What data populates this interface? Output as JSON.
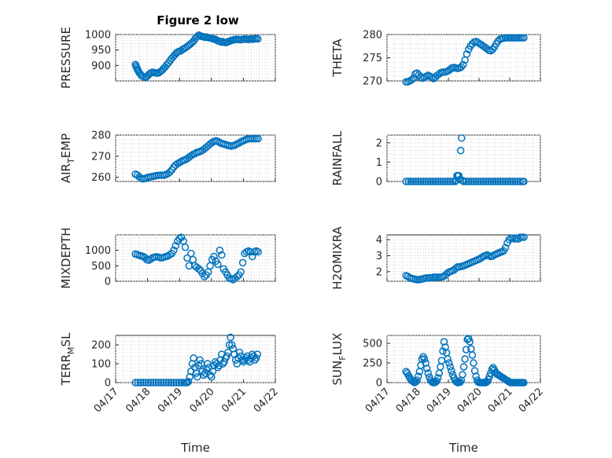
{
  "figure": {
    "title": "Figure 2 low",
    "marker_color": "#0072BD",
    "xlabel": "Time",
    "x_tick_labels": [
      "04/17",
      "04/18",
      "04/19",
      "04/20",
      "04/21",
      "04/22"
    ]
  },
  "chart_data": [
    {
      "type": "scatter",
      "ylabel": "PRESSURE",
      "ylabel_sub": "",
      "title": "Figure 2 low",
      "xlim": [
        0,
        5
      ],
      "ylim": [
        850,
        1000
      ],
      "yticks": [
        900,
        950,
        1000
      ],
      "show_x_ticklabels": false,
      "x": [
        0.62,
        0.64,
        0.66,
        0.68,
        0.7,
        0.72,
        0.75,
        0.8,
        0.85,
        0.9,
        0.95,
        1.0,
        1.05,
        1.1,
        1.15,
        1.2,
        1.25,
        1.3,
        1.35,
        1.4,
        1.45,
        1.5,
        1.55,
        1.6,
        1.65,
        1.7,
        1.75,
        1.8,
        1.85,
        1.9,
        1.95,
        2.0,
        2.05,
        2.1,
        2.15,
        2.2,
        2.25,
        2.3,
        2.35,
        2.4,
        2.45,
        2.5,
        2.55,
        2.6,
        2.65,
        2.7,
        2.75,
        2.8,
        2.85,
        2.9,
        2.95,
        3.0,
        3.05,
        3.1,
        3.15,
        3.2,
        3.25,
        3.3,
        3.35,
        3.4,
        3.45,
        3.5,
        3.55,
        3.6,
        3.65,
        3.7,
        3.75,
        3.8,
        3.85,
        3.9,
        3.95,
        4.0,
        4.05,
        4.1,
        4.15,
        4.2,
        4.25,
        4.3,
        4.35,
        4.4,
        4.45
      ],
      "y": [
        903,
        898,
        893,
        888,
        884,
        880,
        875,
        868,
        865,
        862,
        862,
        866,
        872,
        876,
        878,
        877,
        876,
        875,
        876,
        880,
        884,
        890,
        895,
        902,
        908,
        915,
        922,
        928,
        934,
        940,
        944,
        946,
        948,
        952,
        955,
        958,
        962,
        966,
        970,
        975,
        980,
        988,
        993,
        998,
        996,
        994,
        993,
        991,
        992,
        990,
        989,
        988,
        986,
        985,
        983,
        980,
        978,
        976,
        977,
        975,
        974,
        976,
        978,
        980,
        982,
        983,
        984,
        985,
        984,
        983,
        984,
        985,
        986,
        985,
        984,
        985,
        986,
        985,
        986,
        987,
        986
      ]
    },
    {
      "type": "scatter",
      "ylabel": "THETA",
      "ylabel_sub": "",
      "xlim": [
        0,
        5
      ],
      "ylim": [
        270,
        280
      ],
      "yticks": [
        270,
        275,
        280
      ],
      "show_x_ticklabels": false,
      "x": [
        0.62,
        0.68,
        0.74,
        0.8,
        0.86,
        0.92,
        0.98,
        1.04,
        1.1,
        1.16,
        1.22,
        1.28,
        1.34,
        1.4,
        1.46,
        1.52,
        1.58,
        1.64,
        1.7,
        1.76,
        1.82,
        1.88,
        1.94,
        2.0,
        2.06,
        2.12,
        2.18,
        2.24,
        2.3,
        2.36,
        2.42,
        2.48,
        2.54,
        2.6,
        2.66,
        2.72,
        2.78,
        2.84,
        2.9,
        2.96,
        3.02,
        3.08,
        3.14,
        3.2,
        3.26,
        3.32,
        3.38,
        3.44,
        3.5,
        3.56,
        3.62,
        3.68,
        3.74,
        3.8,
        3.86,
        3.92,
        3.98,
        4.04,
        4.1,
        4.16,
        4.22,
        4.28,
        4.34,
        4.4,
        4.46
      ],
      "y": [
        269.8,
        269.8,
        270.0,
        270.2,
        270.6,
        271.5,
        271.7,
        271.3,
        270.8,
        270.6,
        270.8,
        271.0,
        271.2,
        271.0,
        270.8,
        270.5,
        270.8,
        271.2,
        271.5,
        271.8,
        271.9,
        271.9,
        272.0,
        272.2,
        272.5,
        272.8,
        272.9,
        272.8,
        272.7,
        272.8,
        273.0,
        273.5,
        274.5,
        275.8,
        276.8,
        277.5,
        278.0,
        278.4,
        278.5,
        278.3,
        278.0,
        277.8,
        277.5,
        277.2,
        276.9,
        276.6,
        276.5,
        276.8,
        277.3,
        278.0,
        278.6,
        279.0,
        279.1,
        279.2,
        279.3,
        279.3,
        279.3,
        279.3,
        279.3,
        279.3,
        279.3,
        279.3,
        279.3,
        279.3,
        279.3
      ]
    },
    {
      "type": "scatter",
      "ylabel": "AIR",
      "ylabel_sub": "T",
      "ylabel_suffix": "EMP",
      "xlim": [
        0,
        5
      ],
      "ylim": [
        258,
        280
      ],
      "yticks": [
        260,
        270,
        280
      ],
      "show_x_ticklabels": false,
      "x": [
        0.62,
        0.68,
        0.74,
        0.8,
        0.86,
        0.92,
        0.98,
        1.04,
        1.1,
        1.16,
        1.22,
        1.28,
        1.34,
        1.4,
        1.46,
        1.52,
        1.58,
        1.64,
        1.7,
        1.76,
        1.82,
        1.88,
        1.94,
        2.0,
        2.06,
        2.12,
        2.18,
        2.24,
        2.3,
        2.36,
        2.42,
        2.48,
        2.54,
        2.6,
        2.66,
        2.72,
        2.78,
        2.84,
        2.9,
        2.96,
        3.02,
        3.08,
        3.14,
        3.2,
        3.26,
        3.32,
        3.38,
        3.44,
        3.5,
        3.56,
        3.62,
        3.68,
        3.74,
        3.8,
        3.86,
        3.92,
        3.98,
        4.04,
        4.1,
        4.16,
        4.22,
        4.28,
        4.34,
        4.4,
        4.46
      ],
      "y": [
        261.5,
        261.0,
        260.2,
        259.5,
        259.2,
        259.4,
        259.8,
        260.0,
        260.2,
        260.4,
        260.6,
        260.8,
        260.9,
        261.0,
        261.0,
        261.0,
        261.3,
        261.8,
        262.5,
        263.5,
        264.8,
        265.8,
        266.5,
        267.0,
        267.5,
        268.0,
        268.3,
        268.8,
        269.5,
        270.2,
        270.8,
        271.2,
        271.8,
        272.0,
        272.3,
        272.8,
        273.5,
        274.2,
        275.0,
        275.8,
        276.5,
        277.0,
        277.3,
        277.0,
        276.5,
        276.0,
        275.8,
        275.5,
        275.2,
        275.0,
        274.8,
        275.0,
        275.3,
        275.8,
        276.2,
        276.8,
        277.2,
        277.6,
        278.0,
        278.2,
        278.3,
        278.3,
        278.3,
        278.3,
        278.3
      ]
    },
    {
      "type": "scatter",
      "ylabel": "RAINFALL",
      "ylabel_sub": "",
      "xlim": [
        0,
        5
      ],
      "ylim": [
        0,
        2.4
      ],
      "yticks": [
        0,
        1,
        2
      ],
      "show_x_ticklabels": false,
      "x": [
        0.62,
        0.7,
        0.78,
        0.86,
        0.94,
        1.02,
        1.1,
        1.18,
        1.26,
        1.34,
        1.42,
        1.5,
        1.58,
        1.66,
        1.74,
        1.82,
        1.9,
        1.98,
        2.06,
        2.14,
        2.22,
        2.25,
        2.28,
        2.31,
        2.34,
        2.37,
        2.4,
        2.43,
        2.46,
        2.5,
        2.58,
        2.66,
        2.74,
        2.82,
        2.9,
        2.98,
        3.06,
        3.14,
        3.22,
        3.3,
        3.38,
        3.46,
        3.54,
        3.62,
        3.7,
        3.78,
        3.86,
        3.94,
        4.02,
        4.1,
        4.18,
        4.26,
        4.34,
        4.42,
        4.46
      ],
      "y": [
        0,
        0,
        0,
        0,
        0,
        0,
        0,
        0,
        0,
        0,
        0,
        0,
        0,
        0,
        0,
        0,
        0,
        0,
        0,
        0,
        0,
        0.05,
        0.3,
        0.3,
        0.3,
        0.1,
        1.6,
        2.25,
        0.05,
        0,
        0,
        0,
        0,
        0,
        0,
        0,
        0,
        0,
        0,
        0,
        0,
        0,
        0,
        0,
        0,
        0,
        0,
        0,
        0,
        0,
        0,
        0,
        0,
        0,
        0
      ]
    },
    {
      "type": "scatter",
      "ylabel": "MIXDEPTH",
      "ylabel_sub": "",
      "xlim": [
        0,
        5
      ],
      "ylim": [
        0,
        1500
      ],
      "yticks": [
        0,
        500,
        1000
      ],
      "show_x_ticklabels": false,
      "x": [
        0.62,
        0.68,
        0.74,
        0.8,
        0.86,
        0.92,
        0.98,
        1.04,
        1.1,
        1.16,
        1.22,
        1.28,
        1.34,
        1.4,
        1.46,
        1.52,
        1.58,
        1.64,
        1.7,
        1.76,
        1.82,
        1.88,
        1.94,
        2.0,
        2.06,
        2.12,
        2.18,
        2.24,
        2.3,
        2.36,
        2.42,
        2.48,
        2.54,
        2.6,
        2.66,
        2.72,
        2.78,
        2.84,
        2.9,
        2.96,
        3.02,
        3.08,
        3.14,
        3.2,
        3.26,
        3.32,
        3.38,
        3.44,
        3.5,
        3.56,
        3.62,
        3.68,
        3.74,
        3.8,
        3.86,
        3.92,
        3.98,
        4.04,
        4.1,
        4.16,
        4.22,
        4.28,
        4.34,
        4.4,
        4.46
      ],
      "y": [
        880,
        860,
        840,
        820,
        800,
        760,
        700,
        680,
        720,
        760,
        780,
        790,
        780,
        760,
        760,
        780,
        800,
        820,
        860,
        900,
        1000,
        1150,
        1300,
        1380,
        1420,
        1300,
        1100,
        750,
        500,
        900,
        700,
        500,
        450,
        400,
        350,
        250,
        150,
        200,
        300,
        500,
        700,
        800,
        650,
        550,
        1000,
        850,
        400,
        300,
        200,
        100,
        80,
        50,
        100,
        150,
        200,
        300,
        600,
        900,
        950,
        980,
        950,
        800,
        950,
        980,
        950
      ]
    },
    {
      "type": "scatter",
      "ylabel": "H2OMIXRA",
      "ylabel_sub": "",
      "xlim": [
        0,
        5
      ],
      "ylim": [
        1.4,
        4.3
      ],
      "yticks": [
        2,
        3,
        4
      ],
      "show_x_ticklabels": false,
      "x": [
        0.62,
        0.68,
        0.74,
        0.8,
        0.86,
        0.92,
        0.98,
        1.04,
        1.1,
        1.16,
        1.22,
        1.28,
        1.34,
        1.4,
        1.46,
        1.52,
        1.58,
        1.64,
        1.7,
        1.76,
        1.82,
        1.88,
        1.94,
        2.0,
        2.06,
        2.12,
        2.18,
        2.24,
        2.3,
        2.36,
        2.42,
        2.48,
        2.54,
        2.6,
        2.66,
        2.72,
        2.78,
        2.84,
        2.9,
        2.96,
        3.02,
        3.08,
        3.14,
        3.2,
        3.26,
        3.32,
        3.38,
        3.44,
        3.5,
        3.56,
        3.62,
        3.68,
        3.74,
        3.8,
        3.86,
        3.92,
        3.98,
        4.04,
        4.1,
        4.16,
        4.22,
        4.28,
        4.34,
        4.4,
        4.46
      ],
      "y": [
        1.75,
        1.7,
        1.62,
        1.58,
        1.55,
        1.52,
        1.5,
        1.5,
        1.52,
        1.55,
        1.58,
        1.6,
        1.6,
        1.62,
        1.62,
        1.65,
        1.65,
        1.65,
        1.65,
        1.66,
        1.68,
        1.75,
        1.85,
        1.95,
        2.0,
        2.05,
        2.1,
        2.2,
        2.3,
        2.3,
        2.32,
        2.35,
        2.4,
        2.45,
        2.5,
        2.55,
        2.6,
        2.65,
        2.7,
        2.75,
        2.8,
        2.88,
        2.95,
        3.0,
        3.05,
        3.0,
        2.95,
        2.98,
        3.05,
        3.1,
        3.15,
        3.2,
        3.25,
        3.3,
        3.5,
        3.8,
        4.0,
        4.1,
        4.1,
        4.05,
        4.1,
        4.05,
        4.15,
        4.15,
        4.15
      ]
    },
    {
      "type": "scatter",
      "ylabel": "TERR",
      "ylabel_sub": "M",
      "ylabel_suffix": "SL",
      "xlim": [
        0,
        5
      ],
      "ylim": [
        0,
        250
      ],
      "yticks": [
        0,
        100,
        200
      ],
      "show_x_ticklabels": true,
      "x": [
        0.62,
        0.7,
        0.78,
        0.86,
        0.94,
        1.02,
        1.1,
        1.18,
        1.26,
        1.34,
        1.42,
        1.5,
        1.58,
        1.66,
        1.74,
        1.82,
        1.9,
        1.98,
        2.06,
        2.14,
        2.2,
        2.24,
        2.28,
        2.32,
        2.36,
        2.4,
        2.44,
        2.48,
        2.52,
        2.56,
        2.6,
        2.64,
        2.68,
        2.72,
        2.76,
        2.8,
        2.84,
        2.88,
        2.92,
        2.96,
        3.0,
        3.04,
        3.08,
        3.12,
        3.16,
        3.2,
        3.24,
        3.28,
        3.32,
        3.36,
        3.4,
        3.44,
        3.48,
        3.52,
        3.56,
        3.6,
        3.64,
        3.68,
        3.72,
        3.76,
        3.8,
        3.84,
        3.88,
        3.92,
        3.96,
        4.0,
        4.04,
        4.08,
        4.12,
        4.16,
        4.2,
        4.24,
        4.28,
        4.32,
        4.36,
        4.4,
        4.44
      ],
      "y": [
        0,
        0,
        0,
        0,
        0,
        0,
        0,
        0,
        0,
        0,
        0,
        0,
        0,
        0,
        0,
        0,
        0,
        0,
        0,
        0,
        0,
        0,
        5,
        30,
        60,
        100,
        130,
        80,
        50,
        30,
        90,
        120,
        100,
        60,
        40,
        50,
        70,
        100,
        80,
        40,
        30,
        60,
        90,
        110,
        100,
        80,
        90,
        120,
        150,
        100,
        110,
        130,
        140,
        160,
        200,
        240,
        200,
        180,
        150,
        120,
        100,
        130,
        160,
        140,
        120,
        110,
        120,
        130,
        140,
        120,
        110,
        130,
        150,
        140,
        120,
        130,
        150
      ]
    },
    {
      "type": "scatter",
      "ylabel": "SUN",
      "ylabel_sub": "F",
      "ylabel_suffix": "LUX",
      "xlim": [
        0,
        5
      ],
      "ylim": [
        0,
        600
      ],
      "yticks": [
        0,
        250,
        500
      ],
      "show_x_ticklabels": true,
      "x": [
        0.62,
        0.66,
        0.7,
        0.74,
        0.78,
        0.82,
        0.86,
        0.9,
        0.94,
        0.98,
        1.02,
        1.06,
        1.1,
        1.14,
        1.18,
        1.22,
        1.26,
        1.3,
        1.34,
        1.38,
        1.42,
        1.46,
        1.5,
        1.54,
        1.58,
        1.62,
        1.66,
        1.7,
        1.74,
        1.78,
        1.82,
        1.86,
        1.9,
        1.94,
        1.98,
        2.02,
        2.06,
        2.1,
        2.14,
        2.18,
        2.22,
        2.26,
        2.3,
        2.34,
        2.38,
        2.42,
        2.46,
        2.5,
        2.54,
        2.58,
        2.62,
        2.66,
        2.7,
        2.74,
        2.78,
        2.82,
        2.86,
        2.9,
        2.94,
        2.98,
        3.02,
        3.06,
        3.1,
        3.14,
        3.18,
        3.22,
        3.26,
        3.3,
        3.34,
        3.38,
        3.42,
        3.46,
        3.5,
        3.54,
        3.58,
        3.62,
        3.66,
        3.7,
        3.74,
        3.78,
        3.82,
        3.86,
        3.9,
        3.94,
        3.98,
        4.02,
        4.06,
        4.1,
        4.14,
        4.18,
        4.22,
        4.26,
        4.3,
        4.34,
        4.38,
        4.42,
        4.46
      ],
      "y": [
        140,
        120,
        90,
        60,
        40,
        20,
        10,
        0,
        10,
        30,
        80,
        140,
        220,
        300,
        330,
        300,
        250,
        180,
        120,
        70,
        30,
        10,
        0,
        0,
        5,
        20,
        60,
        120,
        200,
        280,
        400,
        520,
        450,
        380,
        300,
        250,
        200,
        150,
        100,
        60,
        30,
        10,
        0,
        0,
        5,
        30,
        100,
        200,
        300,
        420,
        550,
        560,
        520,
        430,
        350,
        250,
        150,
        80,
        30,
        5,
        0,
        0,
        0,
        0,
        0,
        0,
        10,
        40,
        80,
        120,
        170,
        190,
        160,
        130,
        110,
        100,
        90,
        80,
        70,
        60,
        50,
        40,
        30,
        20,
        10,
        0,
        0,
        0,
        0,
        0,
        0,
        0,
        0,
        0,
        0,
        0,
        0
      ]
    }
  ]
}
